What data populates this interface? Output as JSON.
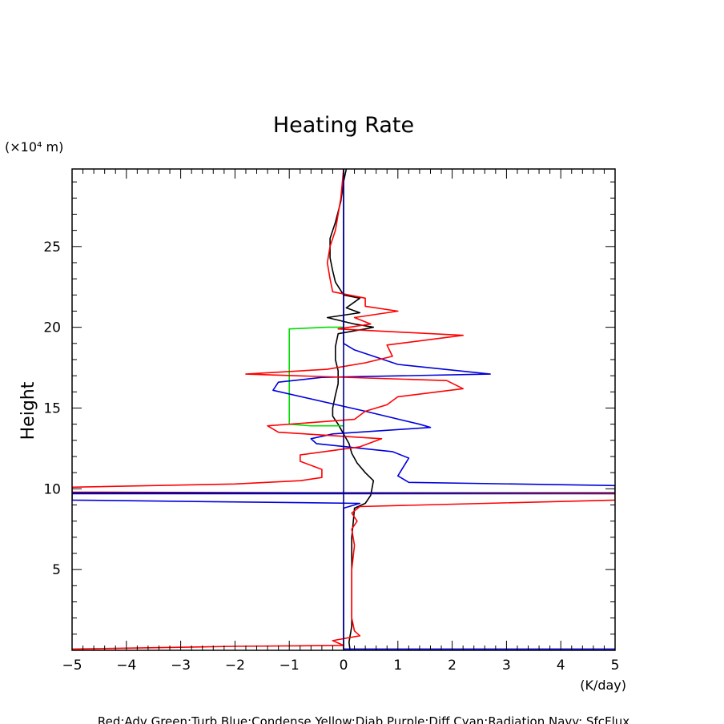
{
  "chart_data": {
    "type": "line",
    "title": "Heating Rate",
    "ylabel": "Height",
    "y_unit": "(×10⁴ m)",
    "x_unit": "(K/day)",
    "xlim": [
      -5,
      5
    ],
    "ylim": [
      0,
      29.8
    ],
    "x_ticks": [
      "−5",
      "−4",
      "−3",
      "−2",
      "−1",
      "0",
      "1",
      "2",
      "3",
      "4",
      "5"
    ],
    "y_ticks": [
      "5",
      "10",
      "15",
      "20",
      "25"
    ],
    "legend_text": "Red:Adv  Green:Turb  Blue:Condense  Yellow:Diab  Purple:Diff  Cyan:Radiation  Navy: SfcFlux",
    "grid": false,
    "series": [
      {
        "color": "#000000",
        "points": [
          [
            0.12,
            0.0
          ],
          [
            0.1,
            0.5
          ],
          [
            0.15,
            1.5
          ],
          [
            0.15,
            3.0
          ],
          [
            0.15,
            5.0
          ],
          [
            0.15,
            7.0
          ],
          [
            0.18,
            8.0
          ],
          [
            0.2,
            8.8
          ],
          [
            0.4,
            9.1
          ],
          [
            0.5,
            9.6
          ],
          [
            0.55,
            10.5
          ],
          [
            0.4,
            11.0
          ],
          [
            0.25,
            11.6
          ],
          [
            0.15,
            12.2
          ],
          [
            0.1,
            12.8
          ],
          [
            0.0,
            13.4
          ],
          [
            -0.1,
            14.0
          ],
          [
            -0.2,
            14.5
          ],
          [
            -0.2,
            15.0
          ],
          [
            -0.15,
            15.8
          ],
          [
            -0.1,
            16.5
          ],
          [
            -0.1,
            17.3
          ],
          [
            -0.15,
            18.0
          ],
          [
            -0.15,
            18.8
          ],
          [
            -0.1,
            19.6
          ],
          [
            0.4,
            19.9
          ],
          [
            0.55,
            20.0
          ],
          [
            0.2,
            20.2
          ],
          [
            -0.3,
            20.6
          ],
          [
            0.3,
            20.9
          ],
          [
            0.05,
            21.2
          ],
          [
            0.3,
            21.8
          ],
          [
            0.0,
            22.0
          ],
          [
            -0.15,
            22.8
          ],
          [
            -0.2,
            23.5
          ],
          [
            -0.25,
            24.3
          ],
          [
            -0.25,
            25.5
          ],
          [
            -0.15,
            26.5
          ],
          [
            -0.05,
            27.8
          ],
          [
            0.0,
            29.0
          ],
          [
            0.05,
            29.8
          ]
        ]
      },
      {
        "color": "#00dd00",
        "points": [
          [
            0.0,
            13.9
          ],
          [
            -0.6,
            13.9
          ],
          [
            -1.0,
            14.0
          ],
          [
            -1.0,
            19.9
          ],
          [
            -0.3,
            20.0
          ],
          [
            0.0,
            20.0
          ]
        ]
      },
      {
        "color": "#0000dd",
        "points": [
          [
            5.0,
            0.08
          ],
          [
            0.0,
            0.08
          ],
          [
            0.0,
            0.5
          ],
          [
            0.0,
            8.8
          ],
          [
            0.3,
            9.1
          ],
          [
            -5.0,
            9.3
          ],
          [
            -5.0,
            9.7
          ],
          [
            5.0,
            9.7
          ],
          [
            5.0,
            10.2
          ],
          [
            1.2,
            10.4
          ],
          [
            1.0,
            10.8
          ],
          [
            1.2,
            11.9
          ],
          [
            0.9,
            12.3
          ],
          [
            -0.5,
            12.8
          ],
          [
            -0.6,
            13.1
          ],
          [
            -0.2,
            13.4
          ],
          [
            1.6,
            13.8
          ],
          [
            1.4,
            14.0
          ],
          [
            0.4,
            14.8
          ],
          [
            -1.3,
            16.1
          ],
          [
            -1.2,
            16.6
          ],
          [
            -0.4,
            16.9
          ],
          [
            2.7,
            17.1
          ],
          [
            1.0,
            17.7
          ],
          [
            0.2,
            18.6
          ],
          [
            0.0,
            19.0
          ],
          [
            0.0,
            29.8
          ]
        ]
      },
      {
        "color": "#ff0000",
        "points": [
          [
            -5.0,
            0.08
          ],
          [
            -2.0,
            0.25
          ],
          [
            0.0,
            0.3
          ],
          [
            -0.2,
            0.6
          ],
          [
            0.3,
            0.9
          ],
          [
            0.2,
            1.2
          ],
          [
            0.15,
            2.0
          ],
          [
            0.15,
            5.0
          ],
          [
            0.2,
            6.5
          ],
          [
            0.15,
            7.5
          ],
          [
            0.25,
            8.0
          ],
          [
            0.15,
            8.5
          ],
          [
            0.3,
            8.9
          ],
          [
            5.0,
            9.3
          ],
          [
            5.0,
            9.7
          ],
          [
            -5.0,
            9.8
          ],
          [
            -5.0,
            10.1
          ],
          [
            -2.0,
            10.3
          ],
          [
            -0.8,
            10.5
          ],
          [
            -0.4,
            10.7
          ],
          [
            -0.4,
            11.2
          ],
          [
            -0.8,
            11.7
          ],
          [
            -0.8,
            12.1
          ],
          [
            0.3,
            12.6
          ],
          [
            0.7,
            13.1
          ],
          [
            -1.2,
            13.5
          ],
          [
            -1.4,
            13.9
          ],
          [
            0.2,
            14.3
          ],
          [
            0.4,
            14.8
          ],
          [
            0.8,
            15.2
          ],
          [
            1.0,
            15.7
          ],
          [
            2.2,
            16.2
          ],
          [
            1.9,
            16.7
          ],
          [
            -1.8,
            17.1
          ],
          [
            -0.3,
            17.4
          ],
          [
            0.4,
            17.8
          ],
          [
            0.9,
            18.2
          ],
          [
            0.8,
            18.9
          ],
          [
            2.2,
            19.5
          ],
          [
            -0.1,
            19.9
          ],
          [
            0.5,
            20.2
          ],
          [
            0.2,
            20.6
          ],
          [
            1.0,
            21.0
          ],
          [
            0.4,
            21.3
          ],
          [
            0.4,
            21.8
          ],
          [
            -0.2,
            22.2
          ],
          [
            -0.25,
            23.0
          ],
          [
            -0.3,
            24.0
          ],
          [
            -0.25,
            25.0
          ],
          [
            -0.15,
            26.0
          ],
          [
            -0.1,
            27.0
          ],
          [
            -0.05,
            28.0
          ],
          [
            0.0,
            29.8
          ]
        ]
      },
      {
        "color": "#000080",
        "points": [
          [
            0.0,
            0.0
          ],
          [
            0.0,
            29.8
          ],
          [
            -5.0,
            9.75
          ],
          [
            5.0,
            9.75
          ]
        ],
        "segments": [
          [
            [
              0.0,
              0.0
            ],
            [
              0.0,
              29.8
            ]
          ],
          [
            [
              -5.0,
              9.75
            ],
            [
              5.0,
              9.75
            ]
          ]
        ]
      }
    ]
  }
}
